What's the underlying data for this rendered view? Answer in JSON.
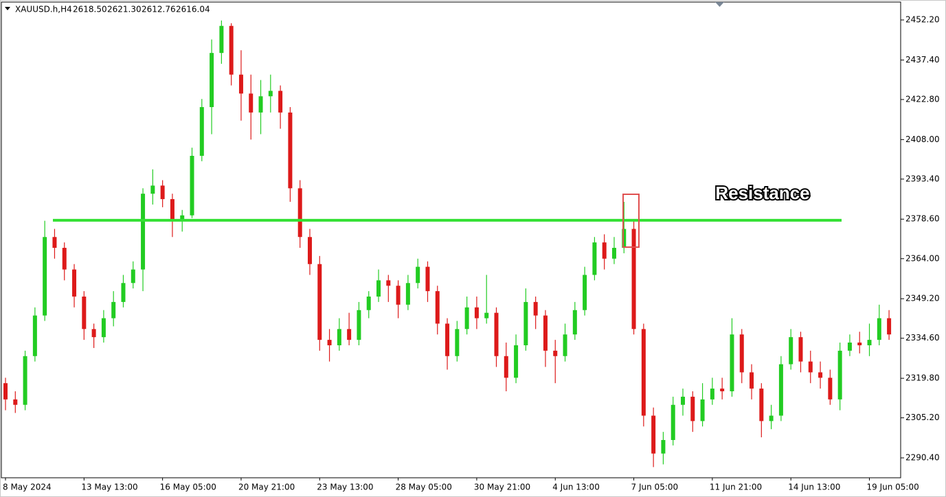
{
  "chart_data": {
    "type": "candlestick",
    "header": {
      "symbol": "XAUUSD.h,H4",
      "ohlc": [
        "2618.50",
        "2621.30",
        "2612.76",
        "2616.04"
      ]
    },
    "categories": [
      "8 May 2024",
      null,
      null,
      null,
      null,
      null,
      null,
      null,
      "13 May 13:00",
      null,
      null,
      null,
      null,
      null,
      null,
      null,
      "16 May 05:00",
      null,
      null,
      null,
      null,
      null,
      null,
      null,
      "20 May 21:00",
      null,
      null,
      null,
      null,
      null,
      null,
      null,
      "23 May 13:00",
      null,
      null,
      null,
      null,
      null,
      null,
      null,
      "28 May 05:00",
      null,
      null,
      null,
      null,
      null,
      null,
      null,
      "30 May 21:00",
      null,
      null,
      null,
      null,
      null,
      null,
      null,
      "4 Jun 13:00",
      null,
      null,
      null,
      null,
      null,
      null,
      null,
      "7 Jun 05:00",
      null,
      null,
      null,
      null,
      null,
      null,
      null,
      "11 Jun 21:00",
      null,
      null,
      null,
      null,
      null,
      null,
      null,
      "14 Jun 13:00",
      null,
      null,
      null,
      null,
      null,
      null,
      null,
      "19 Jun 05:00",
      null,
      null
    ],
    "open": [
      2318,
      2312,
      2310,
      2328,
      2343,
      2372,
      2368,
      2360,
      2350,
      2338,
      2335,
      2342,
      2348,
      2355,
      2360,
      2388,
      2391,
      2386,
      2378,
      2380,
      2402,
      2420,
      2440,
      2450,
      2432,
      2425,
      2418,
      2424,
      2426,
      2418,
      2390,
      2372,
      2362,
      2334,
      2332,
      2338,
      2334,
      2345,
      2350,
      2356,
      2354,
      2347,
      2355,
      2361,
      2352,
      2340,
      2328,
      2338,
      2346,
      2342,
      2344,
      2328,
      2320,
      2332,
      2348,
      2343,
      2330,
      2328,
      2336,
      2345,
      2358,
      2370,
      2364,
      2368,
      2375,
      2338,
      2306,
      2292,
      2297,
      2310,
      2313,
      2304,
      2312,
      2316,
      2315,
      2336,
      2322,
      2316,
      2304,
      2306,
      2325,
      2335,
      2326,
      2322,
      2320,
      2312,
      2330,
      2333,
      2332,
      2334,
      2342
    ],
    "high": [
      2320,
      2315,
      2330,
      2346,
      2378,
      2375,
      2370,
      2362,
      2352,
      2340,
      2345,
      2352,
      2358,
      2363,
      2390,
      2397,
      2393,
      2388,
      2382,
      2405,
      2423,
      2445,
      2452,
      2451,
      2441,
      2432,
      2430,
      2432,
      2428,
      2420,
      2393,
      2375,
      2365,
      2338,
      2342,
      2344,
      2348,
      2352,
      2360,
      2358,
      2356,
      2358,
      2364,
      2363,
      2354,
      2342,
      2341,
      2350,
      2350,
      2358,
      2346,
      2333,
      2336,
      2353,
      2350,
      2345,
      2334,
      2340,
      2348,
      2361,
      2372,
      2373,
      2372,
      2385,
      2378,
      2340,
      2309,
      2300,
      2313,
      2316,
      2315,
      2318,
      2320,
      2320,
      2342,
      2338,
      2325,
      2318,
      2310,
      2328,
      2338,
      2337,
      2330,
      2326,
      2323,
      2333,
      2336,
      2337,
      2340,
      2347,
      2345
    ],
    "low": [
      2308,
      2307,
      2308,
      2326,
      2341,
      2364,
      2356,
      2346,
      2334,
      2331,
      2333,
      2339,
      2346,
      2353,
      2352,
      2384,
      2383,
      2372,
      2374,
      2379,
      2400,
      2410,
      2436,
      2428,
      2415,
      2408,
      2410,
      2418,
      2412,
      2385,
      2368,
      2358,
      2330,
      2326,
      2330,
      2332,
      2332,
      2342,
      2348,
      2348,
      2342,
      2345,
      2353,
      2348,
      2336,
      2323,
      2326,
      2336,
      2338,
      2340,
      2324,
      2315,
      2318,
      2330,
      2338,
      2324,
      2318,
      2326,
      2334,
      2343,
      2356,
      2360,
      2362,
      2366,
      2336,
      2302,
      2287,
      2288,
      2295,
      2306,
      2300,
      2302,
      2310,
      2312,
      2313,
      2318,
      2312,
      2298,
      2301,
      2304,
      2323,
      2322,
      2318,
      2316,
      2310,
      2308,
      2328,
      2329,
      2328,
      2332,
      2334
    ],
    "close": [
      2312,
      2310,
      2328,
      2343,
      2372,
      2368,
      2360,
      2350,
      2338,
      2335,
      2342,
      2348,
      2355,
      2360,
      2388,
      2391,
      2386,
      2378,
      2380,
      2402,
      2420,
      2440,
      2450,
      2432,
      2425,
      2418,
      2424,
      2426,
      2418,
      2390,
      2372,
      2362,
      2334,
      2332,
      2338,
      2334,
      2345,
      2350,
      2356,
      2354,
      2347,
      2355,
      2361,
      2352,
      2340,
      2328,
      2338,
      2346,
      2342,
      2344,
      2328,
      2320,
      2332,
      2348,
      2343,
      2330,
      2328,
      2336,
      2345,
      2358,
      2370,
      2364,
      2368,
      2375,
      2338,
      2306,
      2292,
      2297,
      2310,
      2313,
      2304,
      2312,
      2316,
      2315,
      2336,
      2322,
      2316,
      2304,
      2306,
      2325,
      2335,
      2326,
      2322,
      2320,
      2312,
      2330,
      2333,
      2332,
      2334,
      2342,
      2336
    ],
    "up_color": "#22cc22",
    "down_color": "#dd1a1a",
    "ylim": [
      2283.3,
      2458.3
    ],
    "yticks": [
      {
        "value": 2452.2,
        "label": "2452.20"
      },
      {
        "value": 2437.4,
        "label": "2437.40"
      },
      {
        "value": 2422.8,
        "label": "2422.80"
      },
      {
        "value": 2408,
        "label": "2408.00"
      },
      {
        "value": 2393.4,
        "label": "2393.40"
      },
      {
        "value": 2378.6,
        "label": "2378.60"
      },
      {
        "value": 2364,
        "label": "2364.00"
      },
      {
        "value": 2349.2,
        "label": "2349.20"
      },
      {
        "value": 2334.6,
        "label": "2334.60"
      },
      {
        "value": 2319.8,
        "label": "2319.80"
      },
      {
        "value": 2305.2,
        "label": "2305.20"
      },
      {
        "value": 2290.4,
        "label": "2290.40"
      }
    ],
    "grid": false,
    "resistance": {
      "text": "Resistance",
      "value": 2378.2,
      "color": "#33e033"
    }
  }
}
